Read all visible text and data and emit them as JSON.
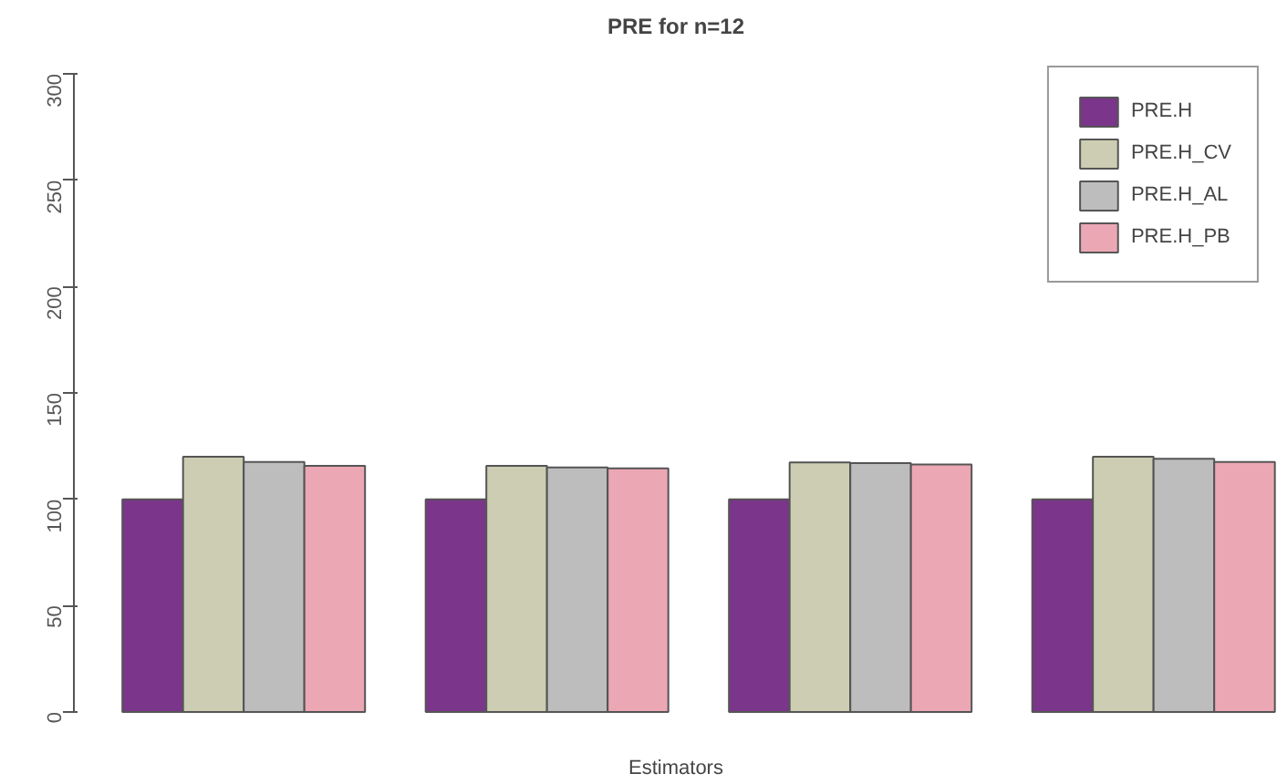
{
  "chart_data": {
    "type": "bar",
    "title": "PRE for n=12",
    "xlabel": "Estimators",
    "categories": [
      null,
      null,
      null,
      null
    ],
    "series": [
      {
        "name": "PRE.H",
        "color": "#7b358b",
        "values": [
          100,
          100,
          100,
          100
        ]
      },
      {
        "name": "PRE.H_CV",
        "color": "#cccdb2",
        "values": [
          120,
          115.7,
          117.3,
          120
        ]
      },
      {
        "name": "PRE.H_AL",
        "color": "#bdbdbd",
        "values": [
          117.5,
          115,
          117,
          119
        ]
      },
      {
        "name": "PRE.H_PB",
        "color": "#eca7b5",
        "values": [
          115.7,
          114.5,
          116.4,
          117.5
        ]
      }
    ],
    "ylim": [
      0,
      300
    ],
    "yticks": [
      0,
      50,
      100,
      150,
      200,
      250,
      300
    ],
    "grid": false,
    "legend": "top right"
  }
}
